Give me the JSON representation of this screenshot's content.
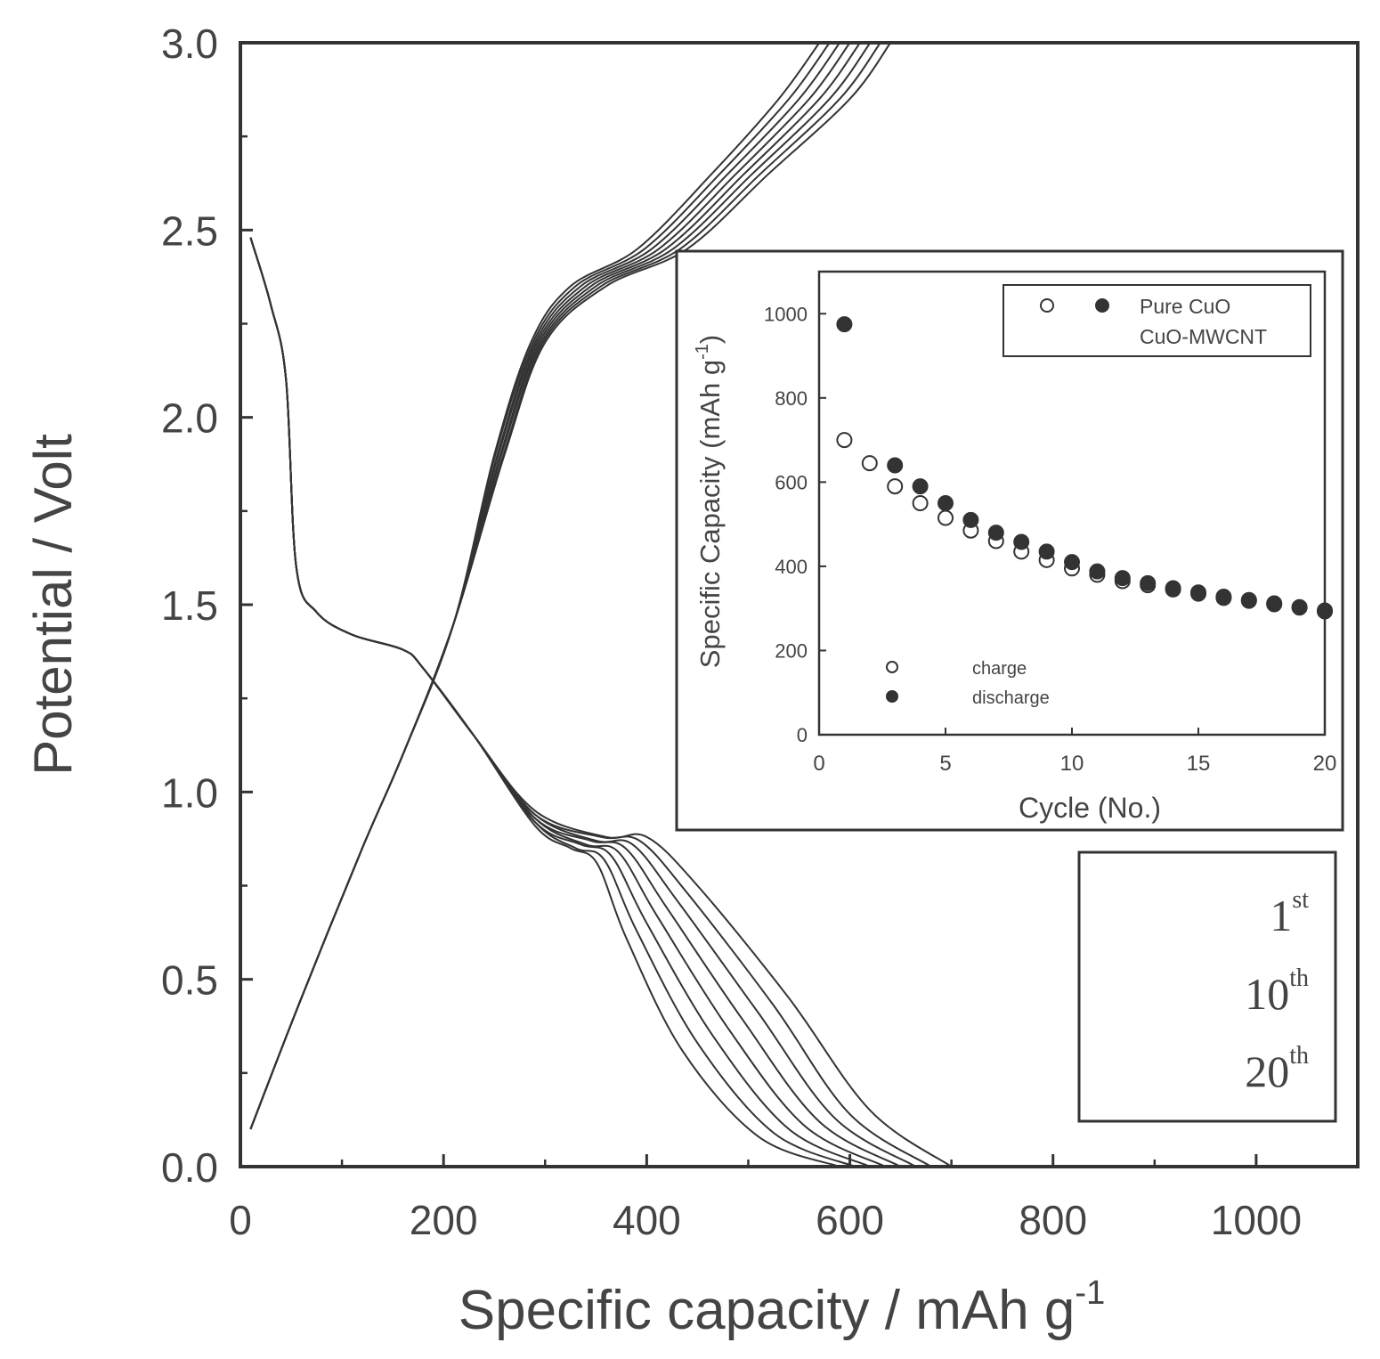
{
  "chart_data": [
    {
      "type": "line",
      "xlabel": "Specific capacity / mAh g",
      "xlabel_sup": "-1",
      "ylabel": "Potential / Volt",
      "xlim": [
        0,
        1100
      ],
      "ylim": [
        0,
        3.0
      ],
      "x_ticks": [
        {
          "value": 0,
          "label": "0"
        },
        {
          "value": 200,
          "label": "200"
        },
        {
          "value": 400,
          "label": "400"
        },
        {
          "value": 600,
          "label": "600"
        },
        {
          "value": 800,
          "label": "800"
        },
        {
          "value": 1000,
          "label": "1000"
        }
      ],
      "y_ticks": [
        {
          "value": 0,
          "label": "0.0"
        },
        {
          "value": 0.5,
          "label": "0.5"
        },
        {
          "value": 1.0,
          "label": "1.0"
        },
        {
          "value": 1.5,
          "label": "1.5"
        },
        {
          "value": 2.0,
          "label": "2.0"
        },
        {
          "value": 2.5,
          "label": "2.5"
        },
        {
          "value": 3.0,
          "label": "3.0"
        }
      ],
      "series": [
        {
          "discharge": [
            [
              10,
              2.48
            ],
            [
              30,
              2.3
            ],
            [
              45,
              2.1
            ],
            [
              55,
              1.6
            ],
            [
              75,
              1.48
            ],
            [
              110,
              1.42
            ],
            [
              160,
              1.38
            ],
            [
              180,
              1.33
            ],
            [
              230,
              1.15
            ],
            [
              290,
              0.95
            ],
            [
              360,
              0.88
            ],
            [
              400,
              0.88
            ],
            [
              450,
              0.75
            ],
            [
              540,
              0.45
            ],
            [
              620,
              0.15
            ],
            [
              700,
              0.0
            ]
          ],
          "charge": [
            [
              10,
              0.1
            ],
            [
              60,
              0.45
            ],
            [
              120,
              0.85
            ],
            [
              160,
              1.1
            ],
            [
              210,
              1.45
            ],
            [
              260,
              1.9
            ],
            [
              300,
              2.2
            ],
            [
              360,
              2.35
            ],
            [
              440,
              2.45
            ],
            [
              520,
              2.65
            ],
            [
              600,
              2.85
            ],
            [
              640,
              3.0
            ]
          ]
        },
        {
          "discharge": [
            [
              10,
              2.48
            ],
            [
              30,
              2.3
            ],
            [
              45,
              2.1
            ],
            [
              55,
              1.6
            ],
            [
              75,
              1.48
            ],
            [
              110,
              1.42
            ],
            [
              160,
              1.38
            ],
            [
              180,
              1.33
            ],
            [
              230,
              1.15
            ],
            [
              290,
              0.94
            ],
            [
              355,
              0.88
            ],
            [
              393,
              0.87
            ],
            [
              440,
              0.73
            ],
            [
              525,
              0.43
            ],
            [
              600,
              0.14
            ],
            [
              680,
              0.0
            ]
          ],
          "charge": [
            [
              10,
              0.1
            ],
            [
              60,
              0.45
            ],
            [
              120,
              0.85
            ],
            [
              160,
              1.1
            ],
            [
              210,
              1.45
            ],
            [
              259,
              1.9
            ],
            [
              298,
              2.2
            ],
            [
              355,
              2.35
            ],
            [
              433,
              2.45
            ],
            [
              512,
              2.65
            ],
            [
              590,
              2.85
            ],
            [
              630,
              3.0
            ]
          ]
        },
        {
          "discharge": [
            [
              10,
              2.48
            ],
            [
              30,
              2.3
            ],
            [
              45,
              2.1
            ],
            [
              55,
              1.6
            ],
            [
              75,
              1.48
            ],
            [
              110,
              1.42
            ],
            [
              160,
              1.38
            ],
            [
              180,
              1.33
            ],
            [
              230,
              1.15
            ],
            [
              290,
              0.94
            ],
            [
              350,
              0.87
            ],
            [
              386,
              0.86
            ],
            [
              430,
              0.71
            ],
            [
              510,
              0.41
            ],
            [
              585,
              0.13
            ],
            [
              665,
              0.0
            ]
          ],
          "charge": [
            [
              10,
              0.1
            ],
            [
              60,
              0.45
            ],
            [
              120,
              0.85
            ],
            [
              160,
              1.1
            ],
            [
              210,
              1.45
            ],
            [
              257,
              1.9
            ],
            [
              296,
              2.2
            ],
            [
              350,
              2.35
            ],
            [
              426,
              2.45
            ],
            [
              504,
              2.65
            ],
            [
              580,
              2.85
            ],
            [
              620,
              3.0
            ]
          ]
        },
        {
          "discharge": [
            [
              10,
              2.48
            ],
            [
              30,
              2.3
            ],
            [
              45,
              2.1
            ],
            [
              55,
              1.6
            ],
            [
              75,
              1.48
            ],
            [
              110,
              1.42
            ],
            [
              160,
              1.38
            ],
            [
              180,
              1.33
            ],
            [
              230,
              1.15
            ],
            [
              290,
              0.93
            ],
            [
              345,
              0.87
            ],
            [
              379,
              0.85
            ],
            [
              420,
              0.69
            ],
            [
              495,
              0.39
            ],
            [
              570,
              0.12
            ],
            [
              650,
              0.0
            ]
          ],
          "charge": [
            [
              10,
              0.1
            ],
            [
              60,
              0.45
            ],
            [
              120,
              0.85
            ],
            [
              160,
              1.1
            ],
            [
              210,
              1.45
            ],
            [
              256,
              1.9
            ],
            [
              294,
              2.2
            ],
            [
              345,
              2.35
            ],
            [
              419,
              2.45
            ],
            [
              496,
              2.65
            ],
            [
              570,
              2.85
            ],
            [
              610,
              3.0
            ]
          ]
        },
        {
          "discharge": [
            [
              10,
              2.48
            ],
            [
              30,
              2.3
            ],
            [
              45,
              2.1
            ],
            [
              55,
              1.6
            ],
            [
              75,
              1.48
            ],
            [
              110,
              1.42
            ],
            [
              160,
              1.38
            ],
            [
              180,
              1.33
            ],
            [
              230,
              1.15
            ],
            [
              290,
              0.93
            ],
            [
              340,
              0.86
            ],
            [
              372,
              0.84
            ],
            [
              410,
              0.67
            ],
            [
              480,
              0.37
            ],
            [
              555,
              0.11
            ],
            [
              635,
              0.0
            ]
          ],
          "charge": [
            [
              10,
              0.1
            ],
            [
              60,
              0.45
            ],
            [
              120,
              0.85
            ],
            [
              160,
              1.1
            ],
            [
              210,
              1.45
            ],
            [
              254,
              1.9
            ],
            [
              292,
              2.2
            ],
            [
              340,
              2.35
            ],
            [
              412,
              2.45
            ],
            [
              488,
              2.65
            ],
            [
              560,
              2.85
            ],
            [
              600,
              3.0
            ]
          ]
        },
        {
          "discharge": [
            [
              10,
              2.48
            ],
            [
              30,
              2.3
            ],
            [
              45,
              2.1
            ],
            [
              55,
              1.6
            ],
            [
              75,
              1.48
            ],
            [
              110,
              1.42
            ],
            [
              160,
              1.38
            ],
            [
              180,
              1.33
            ],
            [
              230,
              1.15
            ],
            [
              290,
              0.92
            ],
            [
              335,
              0.86
            ],
            [
              365,
              0.83
            ],
            [
              400,
              0.65
            ],
            [
              465,
              0.35
            ],
            [
              540,
              0.1
            ],
            [
              620,
              0.0
            ]
          ],
          "charge": [
            [
              10,
              0.1
            ],
            [
              60,
              0.45
            ],
            [
              120,
              0.85
            ],
            [
              160,
              1.1
            ],
            [
              210,
              1.45
            ],
            [
              253,
              1.9
            ],
            [
              290,
              2.2
            ],
            [
              335,
              2.35
            ],
            [
              405,
              2.45
            ],
            [
              480,
              2.65
            ],
            [
              550,
              2.85
            ],
            [
              590,
              3.0
            ]
          ]
        },
        {
          "discharge": [
            [
              10,
              2.48
            ],
            [
              30,
              2.3
            ],
            [
              45,
              2.1
            ],
            [
              55,
              1.6
            ],
            [
              75,
              1.48
            ],
            [
              110,
              1.42
            ],
            [
              160,
              1.38
            ],
            [
              180,
              1.33
            ],
            [
              230,
              1.15
            ],
            [
              290,
              0.92
            ],
            [
              330,
              0.85
            ],
            [
              358,
              0.82
            ],
            [
              390,
              0.63
            ],
            [
              450,
              0.33
            ],
            [
              525,
              0.09
            ],
            [
              605,
              0.0
            ]
          ],
          "charge": [
            [
              10,
              0.1
            ],
            [
              60,
              0.45
            ],
            [
              120,
              0.85
            ],
            [
              160,
              1.1
            ],
            [
              210,
              1.45
            ],
            [
              251,
              1.9
            ],
            [
              288,
              2.2
            ],
            [
              330,
              2.35
            ],
            [
              398,
              2.45
            ],
            [
              472,
              2.65
            ],
            [
              540,
              2.85
            ],
            [
              580,
              3.0
            ]
          ]
        },
        {
          "discharge": [
            [
              10,
              2.48
            ],
            [
              30,
              2.3
            ],
            [
              45,
              2.1
            ],
            [
              55,
              1.6
            ],
            [
              75,
              1.48
            ],
            [
              110,
              1.42
            ],
            [
              160,
              1.38
            ],
            [
              180,
              1.33
            ],
            [
              230,
              1.15
            ],
            [
              290,
              0.91
            ],
            [
              325,
              0.85
            ],
            [
              351,
              0.81
            ],
            [
              380,
              0.61
            ],
            [
              435,
              0.31
            ],
            [
              510,
              0.08
            ],
            [
              590,
              0.0
            ]
          ],
          "charge": [
            [
              10,
              0.1
            ],
            [
              60,
              0.45
            ],
            [
              120,
              0.85
            ],
            [
              160,
              1.1
            ],
            [
              210,
              1.45
            ],
            [
              250,
              1.9
            ],
            [
              286,
              2.2
            ],
            [
              325,
              2.35
            ],
            [
              391,
              2.45
            ],
            [
              464,
              2.65
            ],
            [
              530,
              2.85
            ],
            [
              570,
              3.0
            ]
          ]
        }
      ],
      "cycle_labels": [
        {
          "num": "1",
          "sup": "st"
        },
        {
          "num": "10",
          "sup": "th"
        },
        {
          "num": "20",
          "sup": "th"
        }
      ]
    },
    {
      "type": "scatter",
      "xlabel": "Cycle (No.)",
      "ylabel": "Specific Capacity (mAh g",
      "ylabel_sup": "-1",
      "ylabel_close": ")",
      "xlim": [
        0,
        20
      ],
      "ylim": [
        0,
        1100
      ],
      "x_ticks": [
        {
          "value": 0,
          "label": "0"
        },
        {
          "value": 5,
          "label": "5"
        },
        {
          "value": 10,
          "label": "10"
        },
        {
          "value": 15,
          "label": "15"
        },
        {
          "value": 20,
          "label": "20"
        }
      ],
      "y_ticks": [
        {
          "value": 0,
          "label": "0"
        },
        {
          "value": 200,
          "label": "200"
        },
        {
          "value": 400,
          "label": "400"
        },
        {
          "value": 600,
          "label": "600"
        },
        {
          "value": 800,
          "label": "800"
        },
        {
          "value": 1000,
          "label": "1000"
        }
      ],
      "x": [
        1,
        2,
        3,
        4,
        5,
        6,
        7,
        8,
        9,
        10,
        11,
        12,
        13,
        14,
        15,
        16,
        17,
        18,
        19,
        20
      ],
      "series": [
        {
          "name": "charge",
          "marker": "open",
          "values": [
            700,
            645,
            590,
            550,
            515,
            485,
            460,
            435,
            415,
            395,
            380,
            365,
            355,
            345,
            335,
            325,
            318,
            310,
            302,
            295
          ]
        },
        {
          "name": "discharge",
          "marker": "filled",
          "values": [
            975,
            null,
            640,
            590,
            550,
            510,
            480,
            458,
            435,
            410,
            388,
            372,
            360,
            348,
            338,
            328,
            320,
            312,
            303,
            293
          ]
        }
      ],
      "legend_top": {
        "open_label": "",
        "filled_label": "Pure CuO",
        "second_line": "CuO-MWCNT"
      },
      "legend_bottom": [
        {
          "marker": "open",
          "label": "charge"
        },
        {
          "marker": "filled",
          "label": "discharge"
        }
      ]
    }
  ]
}
